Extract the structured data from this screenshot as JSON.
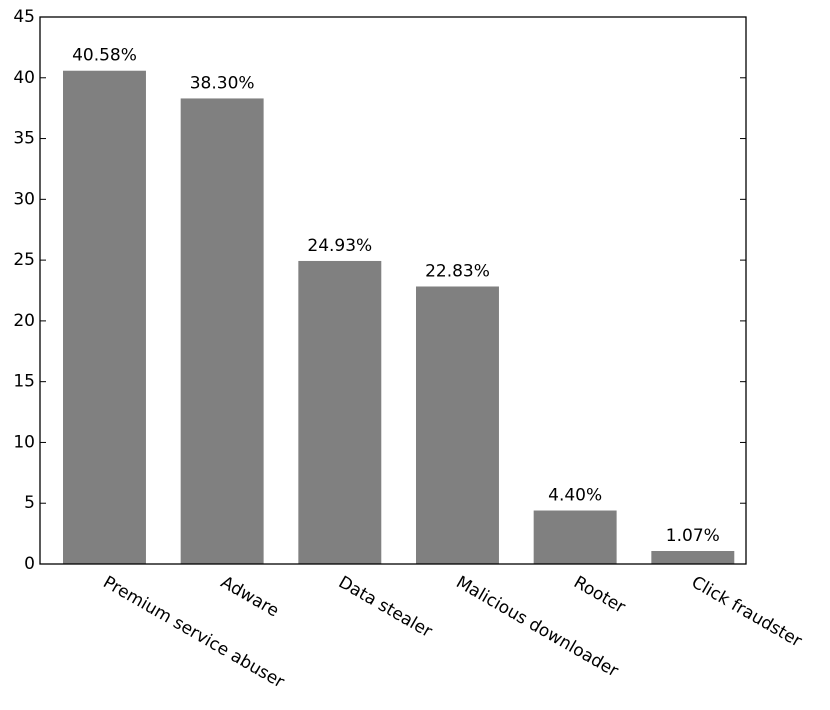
{
  "chart_data": {
    "type": "bar",
    "categories": [
      "Premium service abuser",
      "Adware",
      "Data stealer",
      "Malicious downloader",
      "Rooter",
      "Click fraudster"
    ],
    "values": [
      40.58,
      38.3,
      24.93,
      22.83,
      4.4,
      1.07
    ],
    "value_labels": [
      "40.58%",
      "38.30%",
      "24.93%",
      "22.83%",
      "4.40%",
      "1.07%"
    ],
    "color": "#808080",
    "ylim": [
      0,
      45
    ],
    "yticks": [
      0,
      5,
      10,
      15,
      20,
      25,
      30,
      35,
      40,
      45
    ]
  }
}
